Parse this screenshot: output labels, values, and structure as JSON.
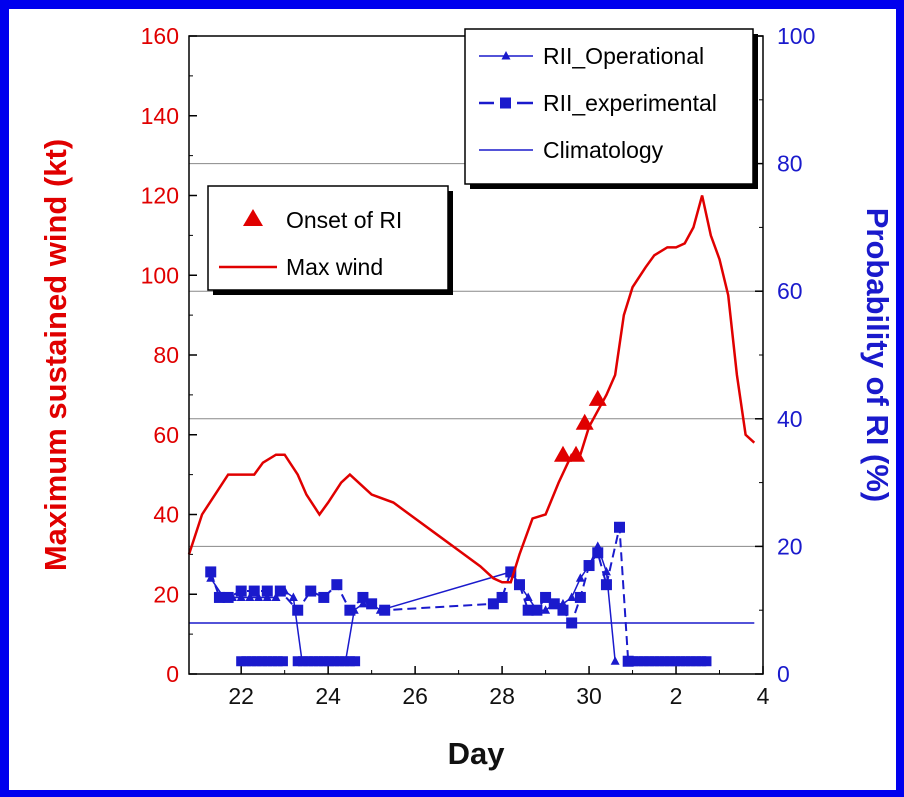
{
  "chart_data": {
    "type": "line",
    "xlabel": "Day",
    "ylabel_left": "Maximum sustained wind (kt)",
    "ylabel_right": "Probability of RI (%)",
    "x_ticks": [
      {
        "t": 1,
        "label": "22"
      },
      {
        "t": 3,
        "label": "24"
      },
      {
        "t": 5,
        "label": "26"
      },
      {
        "t": 7,
        "label": "28"
      },
      {
        "t": 9,
        "label": "30"
      },
      {
        "t": 11,
        "label": "2"
      },
      {
        "t": 13,
        "label": "4"
      }
    ],
    "x_range_days_from_21": [
      -0.2,
      13
    ],
    "y_left": {
      "min": 0,
      "max": 160,
      "ticks": [
        "0",
        "20",
        "40",
        "60",
        "80",
        "100",
        "120",
        "140",
        "160"
      ]
    },
    "y_right": {
      "min": 0,
      "max": 100,
      "ticks": [
        "0",
        "20",
        "40",
        "60",
        "80",
        "100"
      ]
    },
    "grid_y_right": [
      20,
      40,
      60,
      80,
      100
    ],
    "colors": {
      "wind": "#e00000",
      "rii": "#1a1acc",
      "frame": "#0000ee"
    },
    "series": [
      {
        "name": "Max wind",
        "axis": "left",
        "points": [
          [
            -0.2,
            30
          ],
          [
            0.1,
            40
          ],
          [
            0.4,
            45
          ],
          [
            0.7,
            50
          ],
          [
            1.0,
            50
          ],
          [
            1.3,
            50
          ],
          [
            1.5,
            53
          ],
          [
            1.8,
            55
          ],
          [
            2.0,
            55
          ],
          [
            2.3,
            50
          ],
          [
            2.5,
            45
          ],
          [
            2.8,
            40
          ],
          [
            3.0,
            43
          ],
          [
            3.3,
            48
          ],
          [
            3.5,
            50
          ],
          [
            3.8,
            47
          ],
          [
            4.0,
            45
          ],
          [
            4.5,
            43
          ],
          [
            5.0,
            39
          ],
          [
            5.5,
            35
          ],
          [
            6.0,
            31
          ],
          [
            6.5,
            27
          ],
          [
            6.8,
            24
          ],
          [
            7.0,
            23
          ],
          [
            7.2,
            23
          ],
          [
            7.4,
            30
          ],
          [
            7.7,
            39
          ],
          [
            8.0,
            40
          ],
          [
            8.3,
            48
          ],
          [
            8.6,
            55
          ],
          [
            8.8,
            55
          ],
          [
            9.0,
            62
          ],
          [
            9.2,
            66
          ],
          [
            9.4,
            70
          ],
          [
            9.6,
            75
          ],
          [
            9.8,
            90
          ],
          [
            10.0,
            97
          ],
          [
            10.3,
            102
          ],
          [
            10.5,
            105
          ],
          [
            10.8,
            107
          ],
          [
            11.0,
            107
          ],
          [
            11.2,
            108
          ],
          [
            11.4,
            112
          ],
          [
            11.6,
            120
          ],
          [
            11.8,
            110
          ],
          [
            12.0,
            104
          ],
          [
            12.2,
            95
          ],
          [
            12.4,
            75
          ],
          [
            12.6,
            60
          ],
          [
            12.8,
            58
          ]
        ]
      },
      {
        "name": "Onset of RI",
        "axis": "left",
        "marker": "triangle",
        "points": [
          [
            8.4,
            55
          ],
          [
            8.7,
            55
          ],
          [
            8.9,
            63
          ],
          [
            9.2,
            69
          ]
        ]
      },
      {
        "name": "RII_Operational",
        "axis": "right",
        "marker": "small-triangle",
        "points": [
          [
            0.3,
            15
          ],
          [
            0.6,
            12
          ],
          [
            0.8,
            12
          ],
          [
            1.0,
            12
          ],
          [
            1.2,
            12
          ],
          [
            1.4,
            12
          ],
          [
            1.6,
            12
          ],
          [
            1.8,
            12
          ],
          [
            2.0,
            13
          ],
          [
            2.2,
            12
          ],
          [
            2.4,
            2
          ],
          [
            2.6,
            2
          ],
          [
            2.8,
            2
          ],
          [
            3.0,
            2
          ],
          [
            3.2,
            2
          ],
          [
            3.4,
            2
          ],
          [
            3.6,
            10
          ],
          [
            3.8,
            11
          ],
          [
            4.0,
            11
          ],
          [
            4.2,
            10
          ],
          [
            7.2,
            16
          ],
          [
            7.4,
            14
          ],
          [
            7.6,
            12
          ],
          [
            7.8,
            10
          ],
          [
            8.0,
            10
          ],
          [
            8.2,
            11
          ],
          [
            8.4,
            11
          ],
          [
            8.6,
            12
          ],
          [
            8.8,
            15
          ],
          [
            9.0,
            17
          ],
          [
            9.2,
            20
          ],
          [
            9.4,
            16
          ],
          [
            9.6,
            2
          ]
        ]
      },
      {
        "name": "RII_experimental",
        "axis": "right",
        "marker": "square",
        "dashed": true,
        "points": [
          [
            0.3,
            16
          ],
          [
            0.5,
            12
          ],
          [
            0.7,
            12
          ],
          [
            1.0,
            13
          ],
          [
            1.3,
            13
          ],
          [
            1.6,
            13
          ],
          [
            1.9,
            13
          ],
          [
            2.3,
            10
          ],
          [
            2.6,
            13
          ],
          [
            2.9,
            12
          ],
          [
            3.2,
            14
          ],
          [
            3.5,
            10
          ],
          [
            3.8,
            12
          ],
          [
            4.0,
            11
          ],
          [
            4.3,
            10
          ],
          [
            6.8,
            11
          ],
          [
            7.0,
            12
          ],
          [
            7.2,
            16
          ],
          [
            7.4,
            14
          ],
          [
            7.6,
            10
          ],
          [
            7.8,
            10
          ],
          [
            8.0,
            12
          ],
          [
            8.2,
            11
          ],
          [
            8.4,
            10
          ],
          [
            8.6,
            8
          ],
          [
            8.8,
            12
          ],
          [
            9.0,
            17
          ],
          [
            9.2,
            19
          ],
          [
            9.4,
            14
          ],
          [
            9.7,
            23
          ],
          [
            9.9,
            2
          ]
        ]
      },
      {
        "name": "Climatology",
        "axis": "right",
        "value": 8
      }
    ],
    "rii_zero_plateau": {
      "ranges": [
        [
          1.0,
          2.0
        ],
        [
          2.3,
          3.7
        ],
        [
          9.9,
          11.8
        ]
      ],
      "value": 2
    },
    "legend_left": [
      {
        "label": "Onset of RI",
        "marker": "triangle"
      },
      {
        "label": "Max wind",
        "marker": "line"
      }
    ],
    "legend_right": [
      {
        "label": "RII_Operational",
        "marker": "line-triangle"
      },
      {
        "label": "RII_experimental",
        "marker": "dash-square"
      },
      {
        "label": "Climatology",
        "marker": "line"
      }
    ]
  }
}
